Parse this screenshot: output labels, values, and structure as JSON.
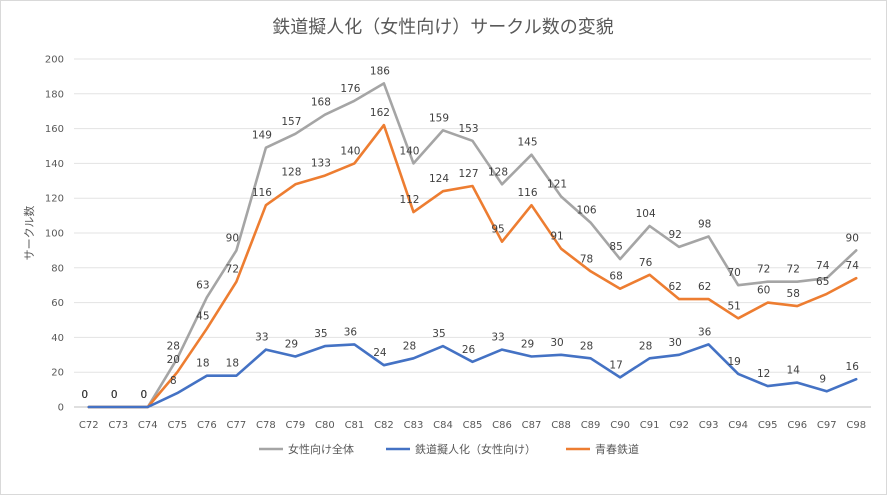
{
  "chart_data": {
    "type": "line",
    "title": "鉄道擬人化（女性向け）サークル数の変貌",
    "xlabel": "",
    "ylabel": "サークル数",
    "ylim": [
      0,
      200
    ],
    "yticks": [
      0,
      20,
      40,
      60,
      80,
      100,
      120,
      140,
      160,
      180,
      200
    ],
    "grid": true,
    "legend_position": "bottom",
    "categories": [
      "C72",
      "C73",
      "C74",
      "C75",
      "C76",
      "C77",
      "C78",
      "C79",
      "C80",
      "C81",
      "C82",
      "C83",
      "C84",
      "C85",
      "C86",
      "C87",
      "C88",
      "C89",
      "C90",
      "C91",
      "C92",
      "C93",
      "C94",
      "C95",
      "C96",
      "C97",
      "C98"
    ],
    "series": [
      {
        "name": "女性向け全体",
        "color": "#a5a5a5",
        "values": [
          0,
          0,
          0,
          28,
          63,
          90,
          149,
          157,
          168,
          176,
          186,
          140,
          159,
          153,
          128,
          145,
          121,
          106,
          85,
          104,
          92,
          98,
          70,
          72,
          72,
          74,
          90
        ]
      },
      {
        "name": "鉄道擬人化（女性向け）",
        "color": "#4472c4",
        "values": [
          0,
          0,
          0,
          8,
          18,
          18,
          33,
          29,
          35,
          36,
          24,
          28,
          35,
          26,
          33,
          29,
          30,
          28,
          17,
          28,
          30,
          36,
          19,
          12,
          14,
          9,
          16
        ]
      },
      {
        "name": "青春鉄道",
        "color": "#ed7d31",
        "values": [
          0,
          0,
          0,
          20,
          45,
          72,
          116,
          128,
          133,
          140,
          162,
          112,
          124,
          127,
          95,
          116,
          91,
          78,
          68,
          76,
          62,
          62,
          51,
          60,
          58,
          65,
          74
        ]
      }
    ]
  }
}
